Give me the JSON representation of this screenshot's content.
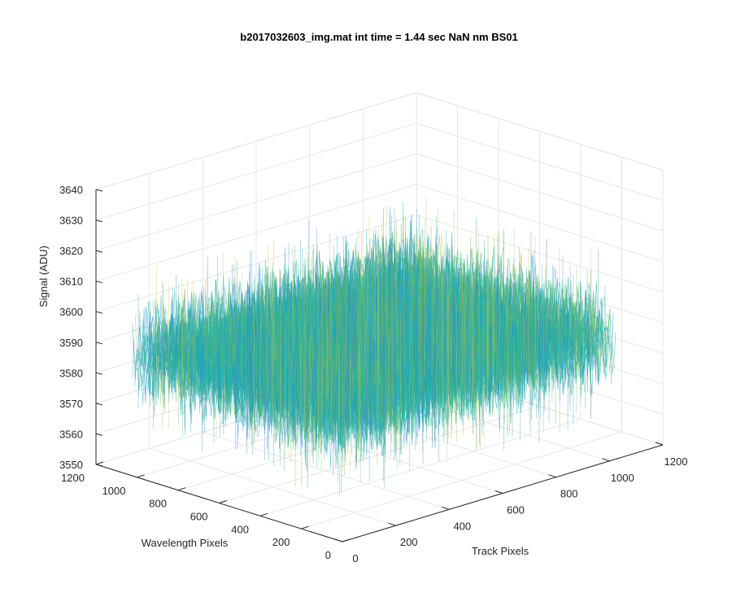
{
  "chart_data": {
    "type": "surface",
    "title": "b2017032603_img.mat int time = 1.44 sec  NaN nm BS01",
    "xlabel": "Track Pixels",
    "ylabel": "Wavelength Pixels",
    "zlabel": "Signal (ADU)",
    "xlim": [
      0,
      1200
    ],
    "ylim": [
      0,
      1200
    ],
    "zlim": [
      3550,
      3640
    ],
    "xticks": [
      0,
      200,
      400,
      600,
      800,
      1000,
      1200
    ],
    "yticks": [
      0,
      200,
      400,
      600,
      800,
      1000,
      1200
    ],
    "zticks": [
      3550,
      3560,
      3570,
      3580,
      3590,
      3600,
      3610,
      3620,
      3630,
      3640
    ],
    "x_extent": [
      1,
      1024
    ],
    "y_extent": [
      1,
      1024
    ],
    "z_mean": 3590,
    "z_noise_range": [
      3560,
      3625
    ],
    "colormap": [
      "#3a8fbe",
      "#1da3c1",
      "#2bb79a",
      "#7bbf5c",
      "#c4c14a"
    ],
    "grid": true
  }
}
